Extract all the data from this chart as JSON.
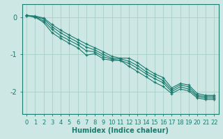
{
  "title": "",
  "xlabel": "Humidex (Indice chaleur)",
  "ylabel": "",
  "bg_color": "#cde8e4",
  "grid_color": "#a8cfc9",
  "line_color": "#1a7a6e",
  "x_values": [
    0,
    1,
    2,
    3,
    4,
    5,
    6,
    7,
    8,
    9,
    10,
    11,
    12,
    13,
    14,
    15,
    16,
    17,
    18,
    19,
    20,
    21,
    22
  ],
  "lines": [
    [
      0.05,
      0.03,
      -0.02,
      -0.2,
      -0.35,
      -0.48,
      -0.6,
      -0.72,
      -0.82,
      -0.93,
      -1.05,
      -1.1,
      -1.1,
      -1.22,
      -1.38,
      -1.52,
      -1.62,
      -1.9,
      -1.78,
      -1.82,
      -2.05,
      -2.1,
      -2.1
    ],
    [
      0.05,
      0.02,
      -0.05,
      -0.26,
      -0.42,
      -0.55,
      -0.67,
      -0.8,
      -0.88,
      -1.0,
      -1.1,
      -1.12,
      -1.18,
      -1.3,
      -1.46,
      -1.58,
      -1.7,
      -1.95,
      -1.82,
      -1.87,
      -2.1,
      -2.13,
      -2.13
    ],
    [
      0.05,
      0.01,
      -0.1,
      -0.33,
      -0.5,
      -0.62,
      -0.74,
      -0.9,
      -0.93,
      -1.06,
      -1.13,
      -1.16,
      -1.24,
      -1.37,
      -1.52,
      -1.65,
      -1.76,
      -2.0,
      -1.87,
      -1.93,
      -2.13,
      -2.17,
      -2.17
    ],
    [
      0.04,
      0.0,
      -0.14,
      -0.42,
      -0.57,
      -0.7,
      -0.82,
      -1.02,
      -0.98,
      -1.12,
      -1.16,
      -1.16,
      -1.32,
      -1.46,
      -1.6,
      -1.75,
      -1.86,
      -2.05,
      -1.93,
      -1.98,
      -2.17,
      -2.21,
      -2.21
    ]
  ],
  "ylim": [
    -2.6,
    0.35
  ],
  "xlim": [
    -0.5,
    22.5
  ],
  "yticks": [
    0,
    -1,
    -2
  ],
  "xticks": [
    0,
    1,
    2,
    3,
    4,
    5,
    6,
    7,
    8,
    9,
    10,
    11,
    12,
    13,
    14,
    15,
    16,
    17,
    18,
    19,
    20,
    21,
    22
  ],
  "fontsize_label": 7,
  "fontsize_tick": 6
}
